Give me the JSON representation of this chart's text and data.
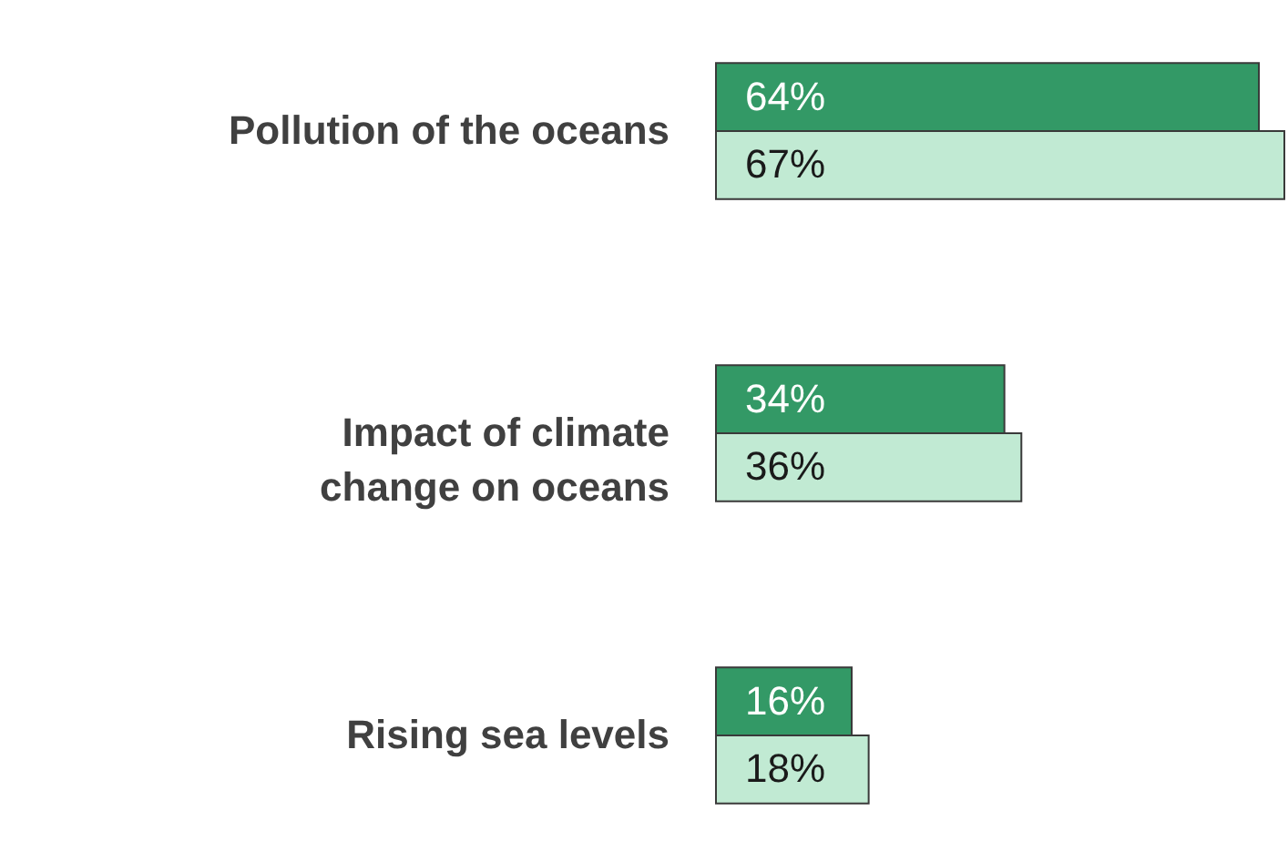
{
  "chart_data": {
    "type": "bar",
    "orientation": "horizontal",
    "categories": [
      "Pollution of the oceans",
      "Impact of climate change on oceans",
      "Rising sea levels"
    ],
    "series": [
      {
        "color": "#339966",
        "values": [
          64,
          34,
          16
        ],
        "value_labels": [
          "64%",
          "34%",
          "16%"
        ]
      },
      {
        "color": "#c1ead3",
        "values": [
          67,
          36,
          18
        ],
        "value_labels": [
          "67%",
          "36%",
          "18%"
        ]
      }
    ]
  }
}
